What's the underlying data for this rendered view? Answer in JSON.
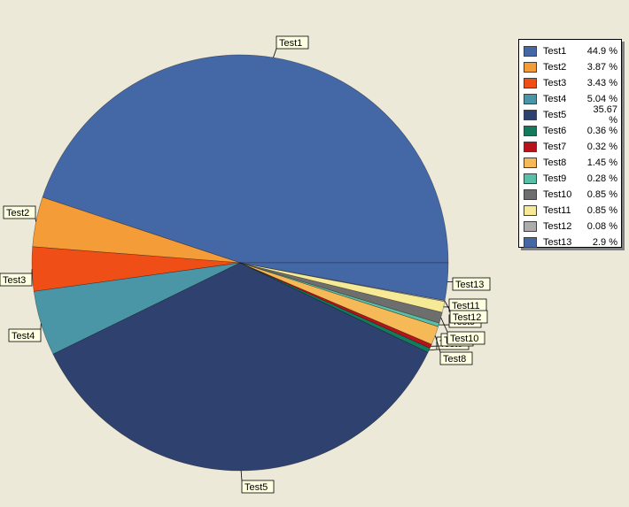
{
  "chart_data": {
    "type": "pie",
    "legend_position": "top-right",
    "series": [
      {
        "name": "Test1",
        "value": 44.9,
        "display": "44.9 %",
        "color": "#4467a6"
      },
      {
        "name": "Test2",
        "value": 3.87,
        "display": "3.87 %",
        "color": "#f49c38"
      },
      {
        "name": "Test3",
        "value": 3.43,
        "display": "3.43 %",
        "color": "#f04e17"
      },
      {
        "name": "Test4",
        "value": 5.04,
        "display": "5.04 %",
        "color": "#4a96a7"
      },
      {
        "name": "Test5",
        "value": 35.67,
        "display": "35.67 %",
        "color": "#2f416f"
      },
      {
        "name": "Test6",
        "value": 0.36,
        "display": "0.36 %",
        "color": "#137a5e"
      },
      {
        "name": "Test7",
        "value": 0.32,
        "display": "0.32 %",
        "color": "#b8121a"
      },
      {
        "name": "Test8",
        "value": 1.45,
        "display": "1.45 %",
        "color": "#f5b957"
      },
      {
        "name": "Test9",
        "value": 0.28,
        "display": "0.28 %",
        "color": "#58c0a6"
      },
      {
        "name": "Test10",
        "value": 0.85,
        "display": "0.85 %",
        "color": "#6e6e6e"
      },
      {
        "name": "Test11",
        "value": 0.85,
        "display": "0.85 %",
        "color": "#f6ea96"
      },
      {
        "name": "Test12",
        "value": 0.08,
        "display": "0.08 %",
        "color": "#adadad"
      },
      {
        "name": "Test13",
        "value": 2.9,
        "display": "2.9 %",
        "color": "#4467a6"
      }
    ]
  }
}
